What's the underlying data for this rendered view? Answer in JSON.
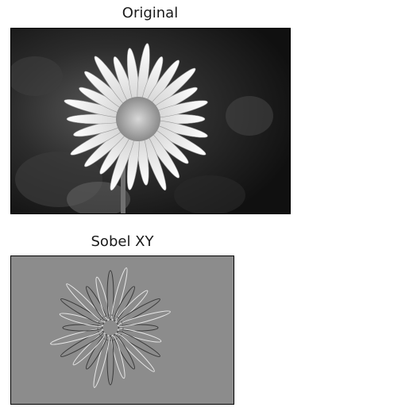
{
  "figures": {
    "original": {
      "title": "Original",
      "subject": "daisy-flower-grayscale"
    },
    "sobel": {
      "title": "Sobel XY",
      "subject": "daisy-edge-map"
    }
  }
}
